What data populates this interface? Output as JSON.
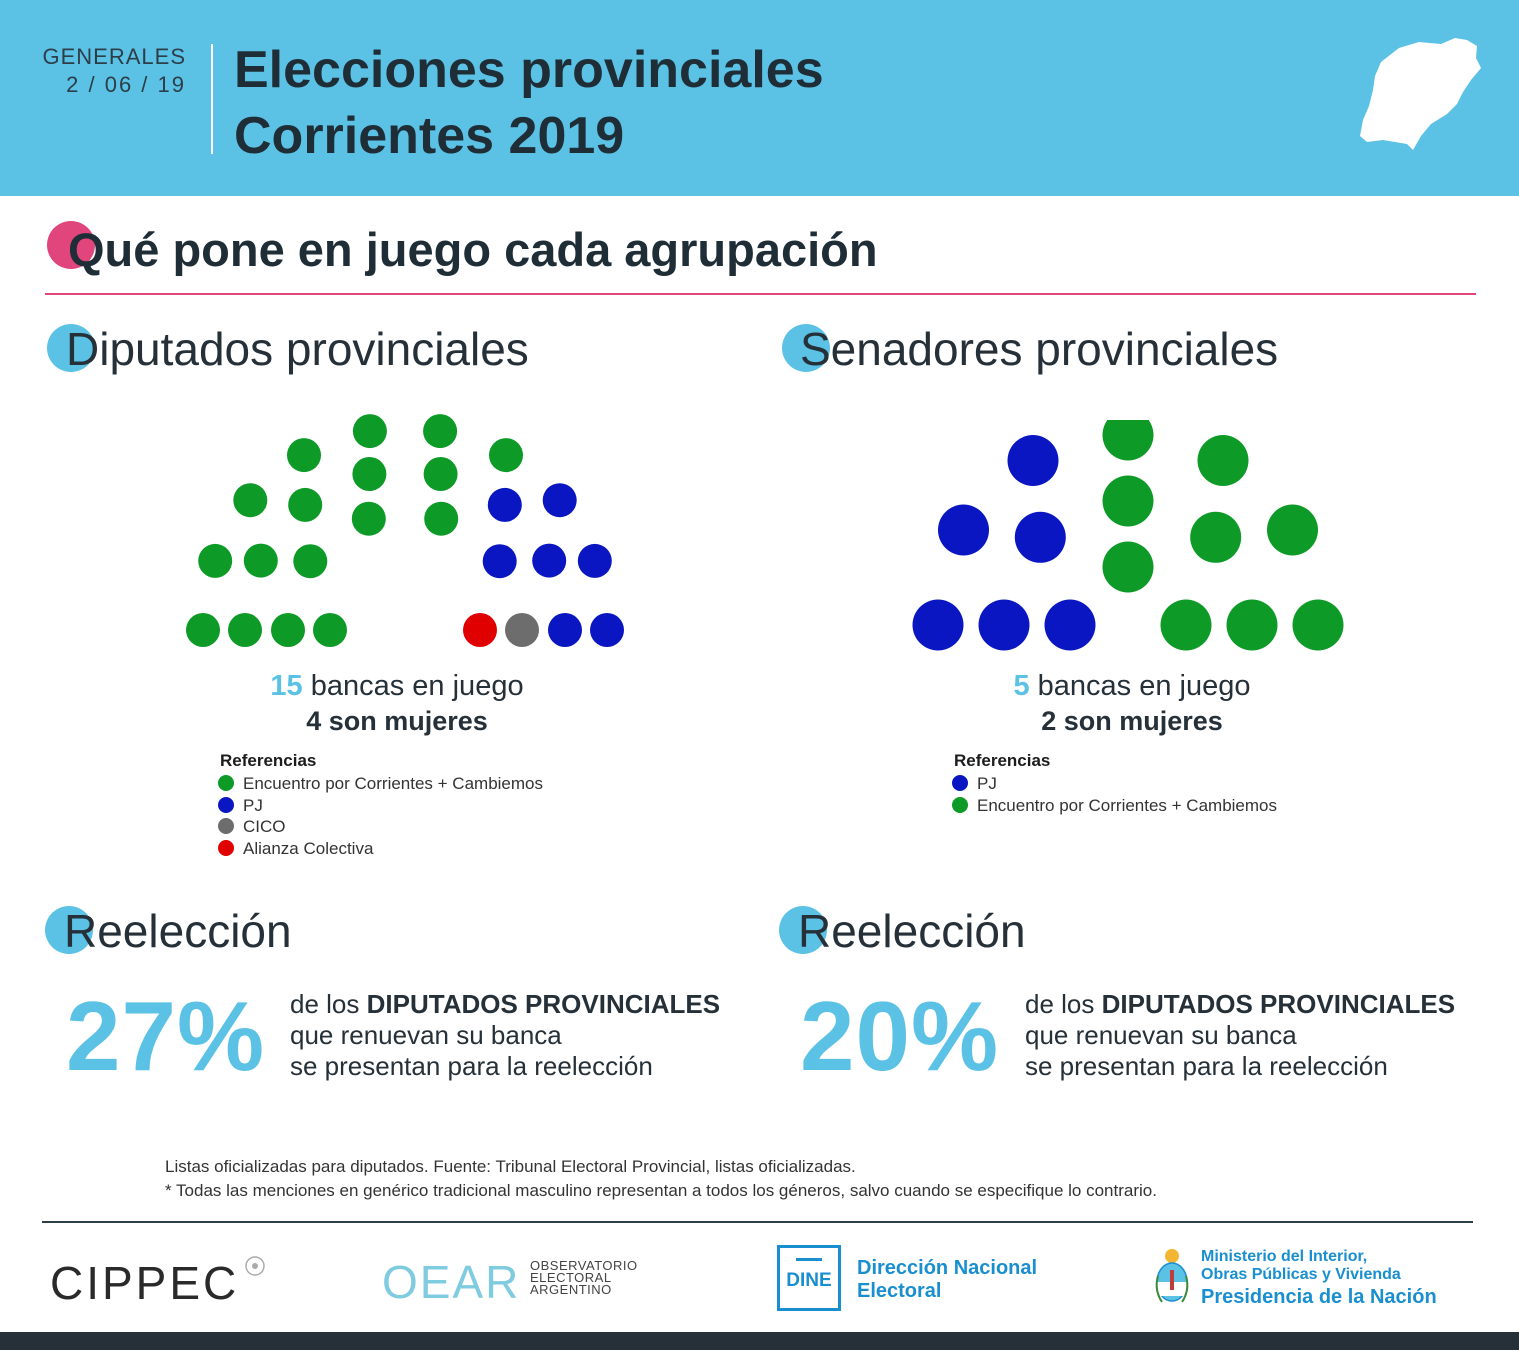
{
  "header": {
    "election_type": "GENERALES",
    "date": "2 / 06 / 19",
    "title_line1": "Elecciones provinciales",
    "title_line2": "Corrientes 2019"
  },
  "section_title": "Qué pone en juego cada agrupación",
  "diputados": {
    "title": "Diputados provinciales",
    "seats_number": "15",
    "seats_label": "bancas en juego",
    "women_label": "4 son mujeres",
    "references_title": "Referencias",
    "references": [
      {
        "label": "Encuentro por Corrientes + Cambiemos",
        "color": "#0d9a27"
      },
      {
        "label": "PJ",
        "color": "#0a16c2"
      },
      {
        "label": "CICO",
        "color": "#6d6d6d"
      },
      {
        "label": "Alianza Colectiva",
        "color": "#e00000"
      }
    ]
  },
  "senadores": {
    "title": "Senadores provinciales",
    "seats_number": "5",
    "seats_label": "bancas en juego",
    "women_label": "2 son mujeres",
    "references_title": "Referencias",
    "references": [
      {
        "label": "PJ",
        "color": "#0a16c2"
      },
      {
        "label": "Encuentro por Corrientes + Cambiemos",
        "color": "#0d9a27"
      }
    ]
  },
  "chart_data": [
    {
      "type": "parliament",
      "title": "Diputados provinciales",
      "total_seats": 26,
      "series": [
        {
          "name": "Encuentro por Corrientes + Cambiemos",
          "seats": 17,
          "color": "#0d9a27"
        },
        {
          "name": "PJ",
          "seats": 7,
          "color": "#0a16c2"
        },
        {
          "name": "CICO",
          "seats": 1,
          "color": "#6d6d6d"
        },
        {
          "name": "Alianza Colectiva",
          "seats": 1,
          "color": "#e00000"
        }
      ]
    },
    {
      "type": "parliament",
      "title": "Senadores provinciales",
      "total_seats": 15,
      "series": [
        {
          "name": "PJ",
          "seats": 6,
          "color": "#0a16c2"
        },
        {
          "name": "Encuentro por Corrientes + Cambiemos",
          "seats": 9,
          "color": "#0d9a27"
        }
      ]
    }
  ],
  "reeleccion_left": {
    "title": "Reelección",
    "percent": "27%",
    "line1_prefix": "de los",
    "line1_bold": "DIPUTADOS PROVINCIALES",
    "line2": "que renuevan su banca",
    "line3": "se presentan para la reelección"
  },
  "reeleccion_right": {
    "title": "Reelección",
    "percent": "20%",
    "line1_prefix": "de los",
    "line1_bold": "DIPUTADOS PROVINCIALES",
    "line2": "que renuevan su banca",
    "line3": "se presentan para la reelección"
  },
  "footnotes": {
    "line1": "Listas oficializadas para diputados. Fuente: Tribunal Electoral Provincial, listas oficializadas.",
    "line2": "* Todas las menciones en genérico tradicional masculino representan a todos los géneros, salvo cuando se especifique lo contrario."
  },
  "logos": {
    "cippec": "CIPPEC",
    "oear": "OEAR",
    "oear_sub": [
      "OBSERVATORIO",
      "ELECTORAL",
      "ARGENTINO"
    ],
    "dine_box": "DINE",
    "dine_line1": "Dirección Nacional",
    "dine_line2": "Electoral",
    "ministerio_line1": "Ministerio del Interior,",
    "ministerio_line2": "Obras Públicas y Vivienda",
    "presidencia": "Presidencia de la Nación"
  },
  "colors": {
    "accent_blue": "#5bc2e6",
    "accent_pink": "#e0457b",
    "dark": "#253038",
    "green": "#0d9a27",
    "blue": "#0a16c2",
    "gray": "#6d6d6d",
    "red": "#e00000",
    "institution_blue": "#1a8fd0"
  }
}
